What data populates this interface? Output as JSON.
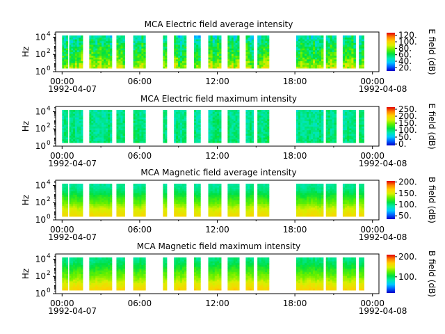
{
  "figure": {
    "background": "#ffffff",
    "colormap": [
      "#0000c8",
      "#0060ff",
      "#00c8ff",
      "#00e8b0",
      "#00e040",
      "#60f000",
      "#d8f000",
      "#ffd000",
      "#ff8000",
      "#e00000"
    ]
  },
  "chart_data": [
    {
      "type": "heatmap",
      "title": "MCA  Electric field average intensity",
      "ylabel": "Hz",
      "colorbar_label": "E field (dB)",
      "colorbar_ticks": [
        "20.",
        "40.",
        "60.",
        "80.",
        "100.",
        "120."
      ],
      "colorbar_range": [
        10,
        128
      ],
      "x_tick_labels": [
        "00:00",
        "06:00",
        "12:00",
        "18:00",
        "00:00"
      ],
      "x_tick_hours": [
        0,
        6,
        12,
        18,
        24
      ],
      "x_date_left": "1992-04-07",
      "x_date_right": "1992-04-08",
      "xlim_hours": [
        -0.5,
        24.5
      ],
      "y_tick_labels": [
        "10",
        "10",
        "10"
      ],
      "y_tick_exponents": [
        "0",
        "2",
        "4"
      ],
      "y_tick_log10": [
        0,
        2,
        4
      ],
      "ylim_log10": [
        0,
        4.6
      ],
      "y_scale": "log",
      "segments_hours": [
        [
          0.0,
          0.45
        ],
        [
          0.55,
          1.6
        ],
        [
          2.1,
          3.85
        ],
        [
          4.2,
          4.85
        ],
        [
          5.5,
          6.45
        ],
        [
          7.8,
          8.1
        ],
        [
          8.65,
          9.6
        ],
        [
          10.2,
          10.7
        ],
        [
          11.3,
          12.3
        ],
        [
          12.8,
          13.7
        ],
        [
          14.2,
          14.8
        ],
        [
          15.1,
          16.0
        ],
        [
          18.1,
          20.2
        ],
        [
          20.4,
          21.2
        ],
        [
          21.7,
          22.7
        ],
        [
          22.95,
          23.35
        ]
      ],
      "y_span_log10": [
        0.4,
        4.2
      ],
      "profile_db": [
        [
          0.5,
          85
        ],
        [
          1.5,
          70
        ],
        [
          2.5,
          62
        ],
        [
          3.5,
          55
        ],
        [
          4.2,
          48
        ]
      ],
      "variability_db": 18
    },
    {
      "type": "heatmap",
      "title": "MCA  Electric field maximum intensity",
      "ylabel": "Hz",
      "colorbar_label": "E field (dB)",
      "colorbar_ticks": [
        "0.",
        "50.",
        "100.",
        "150.",
        "200.",
        "250."
      ],
      "colorbar_range": [
        -10,
        265
      ],
      "x_tick_labels": [
        "00:00",
        "06:00",
        "12:00",
        "18:00",
        "00:00"
      ],
      "x_tick_hours": [
        0,
        6,
        12,
        18,
        24
      ],
      "x_date_left": "1992-04-07",
      "x_date_right": "1992-04-08",
      "xlim_hours": [
        -0.5,
        24.5
      ],
      "y_tick_labels": [
        "10",
        "10",
        "10"
      ],
      "y_tick_exponents": [
        "0",
        "2",
        "4"
      ],
      "y_tick_log10": [
        0,
        2,
        4
      ],
      "ylim_log10": [
        0,
        4.6
      ],
      "y_scale": "log",
      "segments_hours": [
        [
          0.0,
          0.45
        ],
        [
          0.55,
          1.6
        ],
        [
          2.1,
          3.85
        ],
        [
          4.2,
          4.85
        ],
        [
          5.5,
          6.45
        ],
        [
          7.8,
          8.1
        ],
        [
          8.65,
          9.6
        ],
        [
          10.2,
          10.7
        ],
        [
          11.3,
          12.3
        ],
        [
          12.8,
          13.7
        ],
        [
          14.2,
          14.8
        ],
        [
          15.1,
          16.0
        ],
        [
          18.1,
          20.2
        ],
        [
          20.4,
          21.2
        ],
        [
          21.7,
          22.7
        ],
        [
          22.95,
          23.35
        ]
      ],
      "y_span_log10": [
        0.4,
        4.2
      ],
      "profile_db": [
        [
          0.5,
          100
        ],
        [
          2.0,
          95
        ],
        [
          4.2,
          90
        ]
      ],
      "variability_db": 22
    },
    {
      "type": "heatmap",
      "title": "MCA  Magnetic field average intensity",
      "ylabel": "Hz",
      "colorbar_label": "B field (dB)",
      "colorbar_ticks": [
        "50.",
        "100.",
        "150.",
        "200."
      ],
      "colorbar_range": [
        35,
        205
      ],
      "x_tick_labels": [
        "00:00",
        "06:00",
        "12:00",
        "18:00",
        "00:00"
      ],
      "x_tick_hours": [
        0,
        6,
        12,
        18,
        24
      ],
      "x_date_left": "1992-04-07",
      "x_date_right": "1992-04-08",
      "xlim_hours": [
        -0.5,
        24.5
      ],
      "y_tick_labels": [
        "10",
        "10",
        "10"
      ],
      "y_tick_exponents": [
        "0",
        "2",
        "4"
      ],
      "y_tick_log10": [
        0,
        2,
        4
      ],
      "ylim_log10": [
        0,
        4.6
      ],
      "y_scale": "log",
      "segments_hours": [
        [
          0.0,
          0.45
        ],
        [
          0.55,
          1.6
        ],
        [
          2.1,
          3.85
        ],
        [
          4.2,
          4.85
        ],
        [
          5.5,
          6.45
        ],
        [
          7.8,
          8.1
        ],
        [
          8.65,
          9.6
        ],
        [
          10.2,
          10.7
        ],
        [
          11.3,
          12.3
        ],
        [
          12.8,
          13.7
        ],
        [
          14.2,
          14.8
        ],
        [
          15.1,
          16.0
        ],
        [
          18.1,
          20.2
        ],
        [
          20.4,
          21.2
        ],
        [
          21.7,
          22.7
        ],
        [
          22.95,
          23.35
        ]
      ],
      "y_span_log10": [
        0.4,
        4.2
      ],
      "profile_db": [
        [
          0.5,
          160
        ],
        [
          1.2,
          150
        ],
        [
          2.0,
          130
        ],
        [
          2.8,
          115
        ],
        [
          3.5,
          100
        ],
        [
          4.2,
          95
        ]
      ],
      "variability_db": 6
    },
    {
      "type": "heatmap",
      "title": "MCA  Magnetic field maximum intensity",
      "ylabel": "Hz",
      "colorbar_label": "B field (dB)",
      "colorbar_ticks": [
        "100.",
        "200."
      ],
      "colorbar_range": [
        20,
        210
      ],
      "x_tick_labels": [
        "00:00",
        "06:00",
        "12:00",
        "18:00",
        "00:00"
      ],
      "x_tick_hours": [
        0,
        6,
        12,
        18,
        24
      ],
      "x_date_left": "1992-04-07",
      "x_date_right": "1992-04-08",
      "xlim_hours": [
        -0.5,
        24.5
      ],
      "y_tick_labels": [
        "10",
        "10",
        "10"
      ],
      "y_tick_exponents": [
        "0",
        "2",
        "4"
      ],
      "y_tick_log10": [
        0,
        2,
        4
      ],
      "ylim_log10": [
        0,
        4.6
      ],
      "y_scale": "log",
      "segments_hours": [
        [
          0.0,
          0.45
        ],
        [
          0.55,
          1.6
        ],
        [
          2.1,
          3.85
        ],
        [
          4.2,
          4.85
        ],
        [
          5.5,
          6.45
        ],
        [
          7.8,
          8.1
        ],
        [
          8.65,
          9.6
        ],
        [
          10.2,
          10.7
        ],
        [
          11.3,
          12.3
        ],
        [
          12.8,
          13.7
        ],
        [
          14.2,
          14.8
        ],
        [
          15.1,
          16.0
        ],
        [
          18.1,
          20.2
        ],
        [
          20.4,
          21.2
        ],
        [
          21.7,
          22.7
        ],
        [
          22.95,
          23.35
        ]
      ],
      "y_span_log10": [
        0.4,
        4.2
      ],
      "profile_db": [
        [
          0.5,
          165
        ],
        [
          1.2,
          150
        ],
        [
          2.0,
          130
        ],
        [
          2.8,
          115
        ],
        [
          3.5,
          100
        ],
        [
          4.2,
          90
        ]
      ],
      "variability_db": 8
    }
  ]
}
